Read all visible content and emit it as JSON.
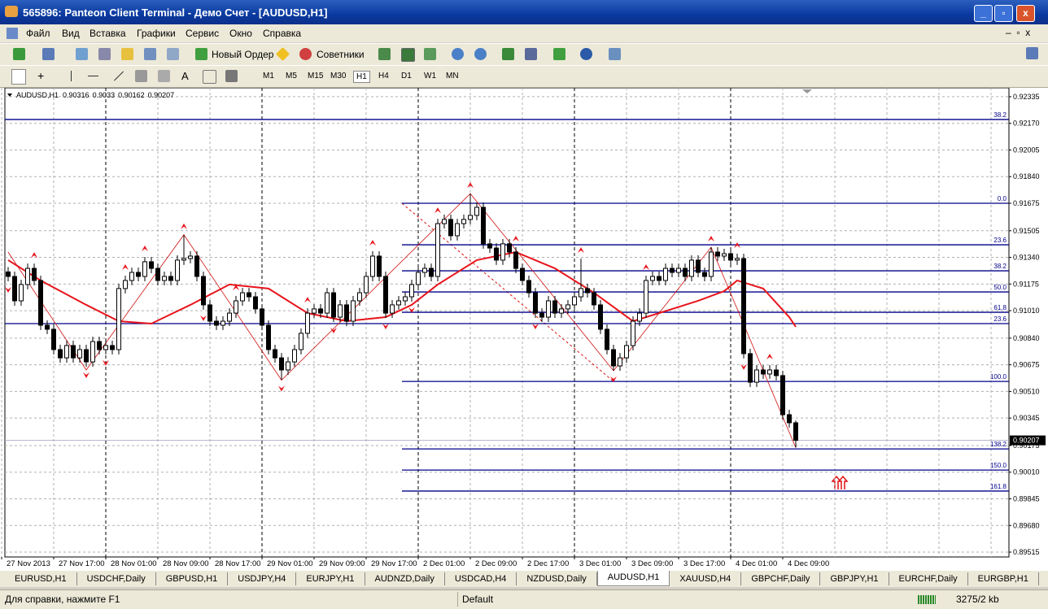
{
  "window": {
    "title": "565896: Panteon Client Terminal - Демо Счет - [AUDUSD,H1]"
  },
  "menu": [
    "Файл",
    "Вид",
    "Вставка",
    "Графики",
    "Сервис",
    "Окно",
    "Справка"
  ],
  "toolbar": {
    "new_order": "Новый Ордер",
    "experts": "Советники",
    "text_tool": "A",
    "timeframes": [
      "M1",
      "M5",
      "M15",
      "M30",
      "H1",
      "H4",
      "D1",
      "W1",
      "MN"
    ]
  },
  "chart_data": {
    "type": "candlestick",
    "title": "AUDUSD,H1",
    "xlim": [
      -0.5,
      153.75
    ],
    "ylim": [
      0.89485,
      0.9239
    ],
    "xticks": [
      {
        "value": 0,
        "label": "27 Nov 2013"
      },
      {
        "value": 8,
        "label": "27 Nov 17:00"
      },
      {
        "value": 16,
        "label": "28 Nov 01:00"
      },
      {
        "value": 24,
        "label": "28 Nov 09:00"
      },
      {
        "value": 32,
        "label": "28 Nov 17:00"
      },
      {
        "value": 40,
        "label": "29 Nov 01:00"
      },
      {
        "value": 48,
        "label": "29 Nov 09:00"
      },
      {
        "value": 56,
        "label": "29 Nov 17:00"
      },
      {
        "value": 64,
        "label": "2 Dec 01:00"
      },
      {
        "value": 72,
        "label": "2 Dec 09:00"
      },
      {
        "value": 80,
        "label": "2 Dec 17:00"
      },
      {
        "value": 88,
        "label": "3 Dec 01:00"
      },
      {
        "value": 96,
        "label": "3 Dec 09:00"
      },
      {
        "value": 104,
        "label": "3 Dec 17:00"
      },
      {
        "value": 112,
        "label": "4 Dec 01:00"
      },
      {
        "value": 120,
        "label": "4 Dec 09:00"
      }
    ],
    "period_separators": [
      16,
      40,
      64,
      88,
      112
    ],
    "yticks": [
      0.92335,
      {
        "value": 0.9217,
        "label": "0.92170"
      },
      0.92005,
      {
        "value": 0.9184,
        "label": "0.91840"
      },
      0.91675,
      0.91505,
      {
        "value": 0.9134,
        "label": "0.91340"
      },
      0.91175,
      {
        "value": 0.9101,
        "label": "0.91010"
      },
      {
        "value": 0.9084,
        "label": "0.90840"
      },
      0.90675,
      {
        "value": 0.9051,
        "label": "0.90510"
      },
      0.90345,
      0.90175,
      {
        "value": 0.9001,
        "label": "0.90010"
      },
      0.89845,
      {
        "value": 0.8968,
        "label": "0.89680"
      },
      0.89515
    ],
    "grid": true,
    "open": [
      0.9125,
      0.91222,
      0.91071,
      0.91172,
      0.91272,
      0.91197,
      0.9092,
      0.90895,
      0.90769,
      0.90718,
      0.90794,
      0.90718,
      0.90769,
      0.90693,
      0.90819,
      0.90769,
      0.90794,
      0.90769,
      0.91147,
      0.91197,
      0.91247,
      0.91222,
      0.91313,
      0.91272,
      0.91197,
      0.91222,
      0.91197,
      0.91323,
      0.91333,
      0.91348,
      0.91222,
      0.91046,
      0.90945,
      0.9092,
      0.90945,
      0.90995,
      0.91071,
      0.91121,
      0.91096,
      0.91021,
      0.9092,
      0.90769,
      0.90718,
      0.90643,
      0.90693,
      0.90769,
      0.9087,
      0.90995,
      0.91021,
      0.90995,
      0.91121,
      0.9097,
      0.91046,
      0.90945,
      0.91071,
      0.91121,
      0.91222,
      0.91348,
      0.91222,
      0.90995,
      0.91046,
      0.91071,
      0.91096,
      0.91172,
      0.91247,
      0.91272,
      0.91222,
      0.91549,
      0.91575,
      0.91474,
      0.91549,
      0.91575,
      0.916,
      0.9165,
      0.91424,
      0.91398,
      0.91323,
      0.91424,
      0.91373,
      0.91272,
      0.91197,
      0.91121,
      0.90995,
      0.9097,
      0.91071,
      0.90995,
      0.91021,
      0.91046,
      0.91096,
      0.91147,
      0.91121,
      0.91046,
      0.90895,
      0.90769,
      0.90668,
      0.90718,
      0.90794,
      0.90945,
      0.90995,
      0.91197,
      0.91222,
      0.91197,
      0.91272,
      0.91247,
      0.91272,
      0.91222,
      0.91323,
      0.91247,
      0.91222,
      0.91373,
      0.91348,
      0.91363,
      0.91323,
      0.91333,
      0.90744,
      0.90567,
      0.90643,
      0.90618,
      0.90643,
      0.90608,
      0.90366,
      0.90316
    ],
    "high": [
      0.9128,
      0.91252,
      0.91202,
      0.91302,
      0.91302,
      0.91227,
      0.9095,
      0.90925,
      0.90799,
      0.90824,
      0.90824,
      0.90799,
      0.90799,
      0.90849,
      0.90849,
      0.90824,
      0.90824,
      0.91177,
      0.91227,
      0.91277,
      0.91277,
      0.91343,
      0.91343,
      0.91302,
      0.91252,
      0.91252,
      0.91353,
      0.9148,
      0.91378,
      0.91378,
      0.91252,
      0.91076,
      0.90975,
      0.90975,
      0.91025,
      0.91101,
      0.91151,
      0.91151,
      0.91126,
      0.91051,
      0.9095,
      0.90799,
      0.90748,
      0.90723,
      0.90799,
      0.909,
      0.91025,
      0.91051,
      0.91051,
      0.91151,
      0.91151,
      0.91076,
      0.91076,
      0.91101,
      0.91151,
      0.91252,
      0.91378,
      0.91378,
      0.91252,
      0.91076,
      0.91101,
      0.91126,
      0.91202,
      0.91277,
      0.91302,
      0.91302,
      0.91579,
      0.91605,
      0.91605,
      0.91579,
      0.91605,
      0.91735,
      0.9168,
      0.9168,
      0.91454,
      0.91428,
      0.91454,
      0.91454,
      0.91403,
      0.91302,
      0.91227,
      0.91151,
      0.91025,
      0.91101,
      0.91101,
      0.91051,
      0.91076,
      0.91126,
      0.91333,
      0.91177,
      0.91151,
      0.91076,
      0.90925,
      0.90799,
      0.90748,
      0.90824,
      0.90975,
      0.91025,
      0.91227,
      0.91252,
      0.91252,
      0.91302,
      0.91302,
      0.91302,
      0.91302,
      0.91353,
      0.91353,
      0.91277,
      0.91403,
      0.91403,
      0.91393,
      0.91393,
      0.91363,
      0.91363,
      0.90774,
      0.90673,
      0.90673,
      0.90673,
      0.90673,
      0.90638,
      0.90396,
      0.9033
    ],
    "low": [
      0.91192,
      0.91041,
      0.91041,
      0.91142,
      0.91167,
      0.9089,
      0.90865,
      0.90739,
      0.90688,
      0.90688,
      0.90688,
      0.90688,
      0.90663,
      0.90663,
      0.90739,
      0.90739,
      0.90739,
      0.90739,
      0.91117,
      0.91167,
      0.91192,
      0.91192,
      0.91242,
      0.91167,
      0.91167,
      0.91167,
      0.91167,
      0.91293,
      0.91303,
      0.91192,
      0.91016,
      0.90915,
      0.9089,
      0.9089,
      0.90915,
      0.90965,
      0.91041,
      0.91066,
      0.90991,
      0.9089,
      0.90739,
      0.90688,
      0.9058,
      0.90613,
      0.90663,
      0.90739,
      0.9084,
      0.90965,
      0.90965,
      0.90965,
      0.9094,
      0.9094,
      0.90915,
      0.90915,
      0.91041,
      0.91091,
      0.91192,
      0.91192,
      0.90965,
      0.90965,
      0.91016,
      0.91041,
      0.91066,
      0.91142,
      0.91217,
      0.91192,
      0.91192,
      0.91519,
      0.91444,
      0.91444,
      0.91519,
      0.91545,
      0.9157,
      0.91394,
      0.91368,
      0.91293,
      0.91293,
      0.91343,
      0.91242,
      0.91167,
      0.91091,
      0.90965,
      0.9094,
      0.9094,
      0.90965,
      0.90965,
      0.90991,
      0.91016,
      0.91066,
      0.91091,
      0.91016,
      0.90865,
      0.90739,
      0.90638,
      0.90638,
      0.90688,
      0.90764,
      0.90915,
      0.90965,
      0.91167,
      0.91167,
      0.91167,
      0.91217,
      0.91217,
      0.91192,
      0.91192,
      0.91217,
      0.91192,
      0.91192,
      0.91318,
      0.91318,
      0.91293,
      0.91293,
      0.90714,
      0.90537,
      0.90537,
      0.90588,
      0.90588,
      0.90578,
      0.90336,
      0.90286,
      0.90162
    ],
    "close": [
      0.91222,
      0.91071,
      0.91172,
      0.91272,
      0.91197,
      0.9092,
      0.90895,
      0.90769,
      0.90718,
      0.90794,
      0.90718,
      0.90769,
      0.90693,
      0.90819,
      0.90769,
      0.90794,
      0.90769,
      0.91147,
      0.91197,
      0.91247,
      0.91222,
      0.91313,
      0.91272,
      0.91197,
      0.91222,
      0.91197,
      0.91323,
      0.91333,
      0.91348,
      0.91222,
      0.91046,
      0.90945,
      0.9092,
      0.90945,
      0.90995,
      0.91071,
      0.91121,
      0.91096,
      0.91021,
      0.9092,
      0.90769,
      0.90718,
      0.90643,
      0.90693,
      0.90769,
      0.9087,
      0.90995,
      0.91021,
      0.90995,
      0.91121,
      0.9097,
      0.91046,
      0.90945,
      0.91071,
      0.91121,
      0.91222,
      0.91348,
      0.91222,
      0.90995,
      0.91046,
      0.91071,
      0.91096,
      0.91172,
      0.91247,
      0.91272,
      0.91222,
      0.91549,
      0.91575,
      0.91474,
      0.91549,
      0.91575,
      0.916,
      0.9165,
      0.91424,
      0.91398,
      0.91323,
      0.91424,
      0.91373,
      0.91272,
      0.91197,
      0.91121,
      0.90995,
      0.9097,
      0.91071,
      0.90995,
      0.91021,
      0.91046,
      0.91096,
      0.91147,
      0.91121,
      0.91046,
      0.90895,
      0.90769,
      0.90668,
      0.90718,
      0.90794,
      0.90945,
      0.90995,
      0.91197,
      0.91222,
      0.91197,
      0.91272,
      0.91247,
      0.91272,
      0.91222,
      0.91323,
      0.91247,
      0.91222,
      0.91373,
      0.91348,
      0.91363,
      0.91323,
      0.91333,
      0.90744,
      0.90567,
      0.90643,
      0.90618,
      0.90643,
      0.90608,
      0.90366,
      0.90316,
      0.90207
    ],
    "ma": {
      "color": "#e8141c",
      "x": [
        0,
        5,
        12,
        17,
        22,
        28,
        34,
        40,
        46,
        52,
        58,
        62,
        66,
        72,
        78,
        84,
        90,
        96,
        100,
        106,
        110,
        112,
        116,
        120,
        121
      ],
      "values": [
        0.91323,
        0.91197,
        0.91046,
        0.90945,
        0.9093,
        0.91046,
        0.91172,
        0.91147,
        0.90995,
        0.90945,
        0.9097,
        0.91046,
        0.91172,
        0.91323,
        0.91373,
        0.91272,
        0.91121,
        0.90945,
        0.90995,
        0.91071,
        0.91131,
        0.91197,
        0.91147,
        0.9097,
        0.9091
      ]
    },
    "zigzag": {
      "color": "#d01010",
      "x": [
        0,
        12,
        27,
        42,
        71,
        93,
        108,
        121
      ],
      "values": [
        0.91373,
        0.90643,
        0.9148,
        0.9058,
        0.91735,
        0.90638,
        0.91403,
        0.90162
      ]
    },
    "fractals": {
      "color": "#e8141c",
      "up": [
        4,
        18,
        21,
        27,
        35,
        46,
        56,
        66,
        71,
        78,
        88,
        98,
        108,
        112,
        117
      ],
      "down": [
        0,
        12,
        15,
        30,
        42,
        50,
        58,
        62,
        81,
        93,
        113
      ]
    },
    "fibo": [
      {
        "color": "#00008b",
        "start": 61,
        "end": 93,
        "levels": [
          {
            "label": "0.0",
            "price": 0.91675
          },
          {
            "label": "23.6",
            "price": 0.91418
          },
          {
            "label": "38.2",
            "price": 0.91257
          },
          {
            "label": "50.0",
            "price": 0.91126
          },
          {
            "label": "61.8",
            "price": 0.91
          },
          {
            "label": "100.0",
            "price": 0.90572
          },
          {
            "label": "138.2",
            "price": 0.90154
          },
          {
            "label": "150.0",
            "price": 0.90023
          },
          {
            "label": "161.8",
            "price": 0.89893
          }
        ]
      },
      {
        "color": "#00008b",
        "start": 0,
        "levels": [
          {
            "label": "38.2",
            "price": 0.92194
          },
          {
            "label": "23.6",
            "price": 0.9093
          }
        ]
      }
    ]
  },
  "tabs": [
    "EURUSD,H1",
    "USDCHF,Daily",
    "GBPUSD,H1",
    "USDJPY,H4",
    "EURJPY,H1",
    "AUDNZD,Daily",
    "USDCAD,H4",
    "NZDUSD,Daily",
    "AUDUSD,H1",
    "XAUUSD,H4",
    "GBPCHF,Daily",
    "GBPJPY,H1",
    "EURCHF,Daily",
    "EURGBP,H1"
  ],
  "active_tab": 8,
  "status": {
    "help": "Для справки, нажмите F1",
    "profile": "Default",
    "traffic": "3275/2 kb"
  }
}
